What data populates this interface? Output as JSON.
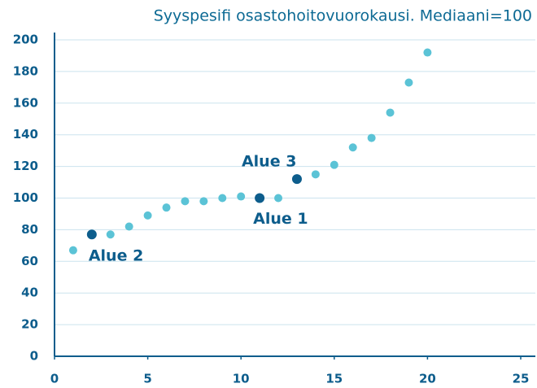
{
  "chart_data": {
    "type": "scatter",
    "title": "Syyspesifi osastohoitovuorokausi. Mediaani=100",
    "series": [
      {
        "color": "#5bc3d6",
        "x": [
          1,
          3,
          4,
          5,
          6,
          7,
          8,
          9,
          10,
          12,
          14,
          15,
          16,
          17,
          18,
          19,
          20
        ],
        "values": [
          67,
          77,
          82,
          89,
          94,
          98,
          98,
          100,
          101,
          100,
          115,
          121,
          132,
          138,
          154,
          173,
          192
        ]
      },
      {
        "color": "#0d5d8c",
        "x": [
          2,
          11,
          13
        ],
        "values": [
          77,
          100,
          112
        ],
        "point_labels": [
          "Alue 2",
          "Alue 1",
          "Alue 3"
        ]
      }
    ],
    "xlim": [
      0,
      25
    ],
    "xticks": [
      0,
      5,
      10,
      15,
      20,
      25
    ],
    "ylim": [
      0,
      200
    ],
    "yticks": [
      0,
      20,
      40,
      60,
      80,
      100,
      120,
      140,
      160,
      180,
      200
    ],
    "grid": true
  }
}
